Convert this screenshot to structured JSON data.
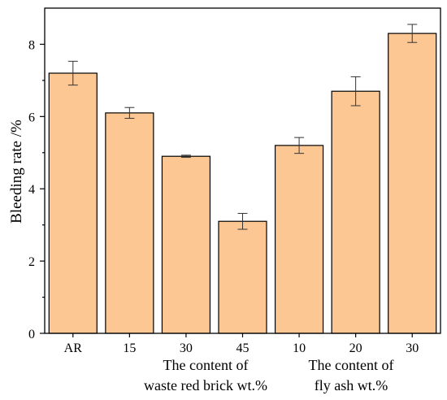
{
  "chart_data": {
    "type": "bar",
    "categories": [
      "AR",
      "15",
      "30",
      "45",
      "10",
      "20",
      "30"
    ],
    "values": [
      7.2,
      6.1,
      4.9,
      3.1,
      5.2,
      6.7,
      8.3
    ],
    "error": [
      0.33,
      0.15,
      0.03,
      0.22,
      0.22,
      0.4,
      0.25
    ],
    "title": "",
    "xlabel": "",
    "ylabel": "Bleeding rate /%",
    "ylim": [
      0,
      9
    ],
    "yticks": [
      0,
      2,
      4,
      6,
      8
    ],
    "grid": false,
    "legend": "none",
    "bar_color": "#FDC794",
    "edge_color": "#000000",
    "group_labels": [
      {
        "lines": [
          "The content of",
          "waste red brick wt.%"
        ],
        "covers": [
          1,
          2,
          3
        ]
      },
      {
        "lines": [
          "The content of",
          "fly ash wt.%"
        ],
        "covers": [
          4,
          5,
          6
        ]
      }
    ]
  }
}
